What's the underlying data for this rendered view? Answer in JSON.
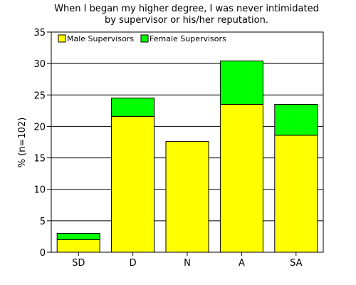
{
  "chart_data": {
    "type": "bar",
    "stacked": true,
    "title": "When I began my higher degree, I was never intimidated",
    "subtitle": "by supervisor or his/her reputation.",
    "ylabel": "% (n=102)",
    "xlabel": "",
    "categories": [
      "SD",
      "D",
      "N",
      "A",
      "SA"
    ],
    "ylim": [
      0,
      35
    ],
    "yticks": [
      0,
      5,
      10,
      15,
      20,
      25,
      30,
      35
    ],
    "grid": true,
    "legend_position": "top-left",
    "series": [
      {
        "name": "Male Supervisors",
        "color": "#ffff00",
        "values": [
          2.0,
          21.6,
          17.6,
          23.5,
          18.6
        ]
      },
      {
        "name": "Female Supervisors",
        "color": "#00ff00",
        "values": [
          1.0,
          2.9,
          0.0,
          6.9,
          4.9
        ]
      }
    ]
  }
}
